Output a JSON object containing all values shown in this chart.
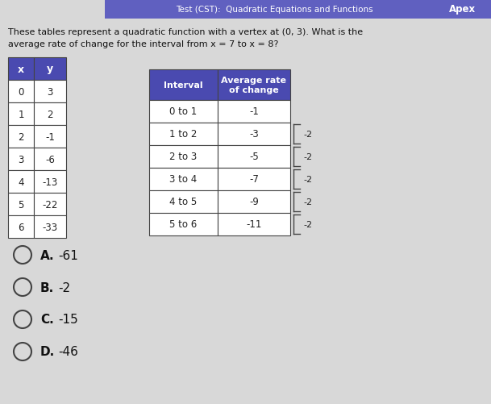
{
  "title_bar_text": "Test (CST):  Quadratic Equations and Functions",
  "apex_text": "Apex",
  "question_line1": "These tables represent a quadratic function with a vertex at (0, 3). What is the",
  "question_line2": "average rate of change for the interval from x = 7 to x = 8?",
  "table1_headers": [
    "x",
    "y"
  ],
  "table1_data": [
    [
      "0",
      "3"
    ],
    [
      "1",
      "2"
    ],
    [
      "2",
      "-1"
    ],
    [
      "3",
      "-6"
    ],
    [
      "4",
      "-13"
    ],
    [
      "5",
      "-22"
    ],
    [
      "6",
      "-33"
    ]
  ],
  "table2_header1": "Interval",
  "table2_header2": "Average rate\nof change",
  "table2_data": [
    [
      "0 to 1",
      "-1"
    ],
    [
      "1 to 2",
      "-3"
    ],
    [
      "2 to 3",
      "-5"
    ],
    [
      "3 to 4",
      "-7"
    ],
    [
      "4 to 5",
      "-9"
    ],
    [
      "5 to 6",
      "-11"
    ]
  ],
  "bracket_values": [
    "-2",
    "-2",
    "-2",
    "-2",
    "-2"
  ],
  "choices": [
    "A.",
    "B.",
    "C.",
    "D."
  ],
  "choice_vals": [
    "-61",
    "-2",
    "-15",
    "-46"
  ],
  "bg_color": "#d8d8d8",
  "header_bg": "#4a4ab0",
  "header_text": "#ffffff",
  "cell_bg": "#ffffff",
  "cell_text": "#222222",
  "top_bar_bg": "#6060c0",
  "top_bar_text": "#ffffff",
  "border_color": "#444444"
}
